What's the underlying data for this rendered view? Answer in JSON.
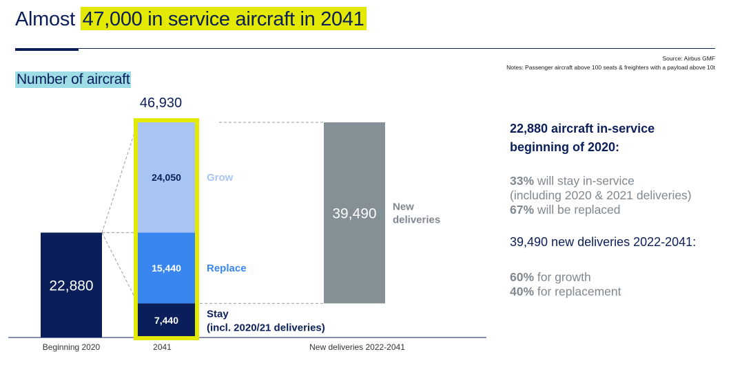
{
  "header": {
    "title_prefix": "Almost ",
    "title_highlight": "47,000 in service aircraft in 2041",
    "source": "Source: Airbus GMF",
    "notes": "Notes: Passenger aircraft above 100 seats & freighters with a payload above 10t",
    "subtitle": "Number of aircraft"
  },
  "chart_data": {
    "type": "bar",
    "stacked": true,
    "categories": [
      "Beginning 2020",
      "2041",
      "New deliveries 2022-2041"
    ],
    "totals": [
      22880,
      46930,
      39490
    ],
    "total_label_2041": "46,930",
    "series": [
      {
        "name": "Stay (incl. 2020/21 deliveries)",
        "values": [
          22880,
          7440,
          null
        ],
        "labels": [
          "22,880",
          "7,440",
          ""
        ],
        "color": "#0a1e5a"
      },
      {
        "name": "Replace",
        "values": [
          null,
          15440,
          null
        ],
        "labels": [
          "",
          "15,440",
          ""
        ],
        "color": "#3a86f0"
      },
      {
        "name": "Grow",
        "values": [
          null,
          24050,
          null
        ],
        "labels": [
          "",
          "24,050",
          ""
        ],
        "color": "#a8c4f2"
      },
      {
        "name": "New deliveries",
        "values": [
          null,
          null,
          39490
        ],
        "labels": [
          "",
          "",
          "39,490"
        ],
        "color": "#848f96"
      }
    ],
    "segment_names": {
      "grow": "Grow",
      "replace": "Replace",
      "stay_line1": "Stay",
      "stay_line2": "(incl. 2020/21 deliveries)",
      "new_line1": "New",
      "new_line2": "deliveries"
    },
    "highlight_color": "#e3e900"
  },
  "side_panel": {
    "heading1_line1": "22,880 aircraft in-service",
    "heading1_line2": "beginning of 2020:",
    "stat1_value": "33%",
    "stat1_text": " will stay in-service",
    "stat1_sub": "(including 2020 & 2021 deliveries)",
    "stat2_value": "67%",
    "stat2_text": " will be replaced",
    "heading2": "39,490 new deliveries 2022-2041:",
    "stat3_value": "60%",
    "stat3_text": " for growth",
    "stat4_value": "40%",
    "stat4_text": " for replacement"
  }
}
